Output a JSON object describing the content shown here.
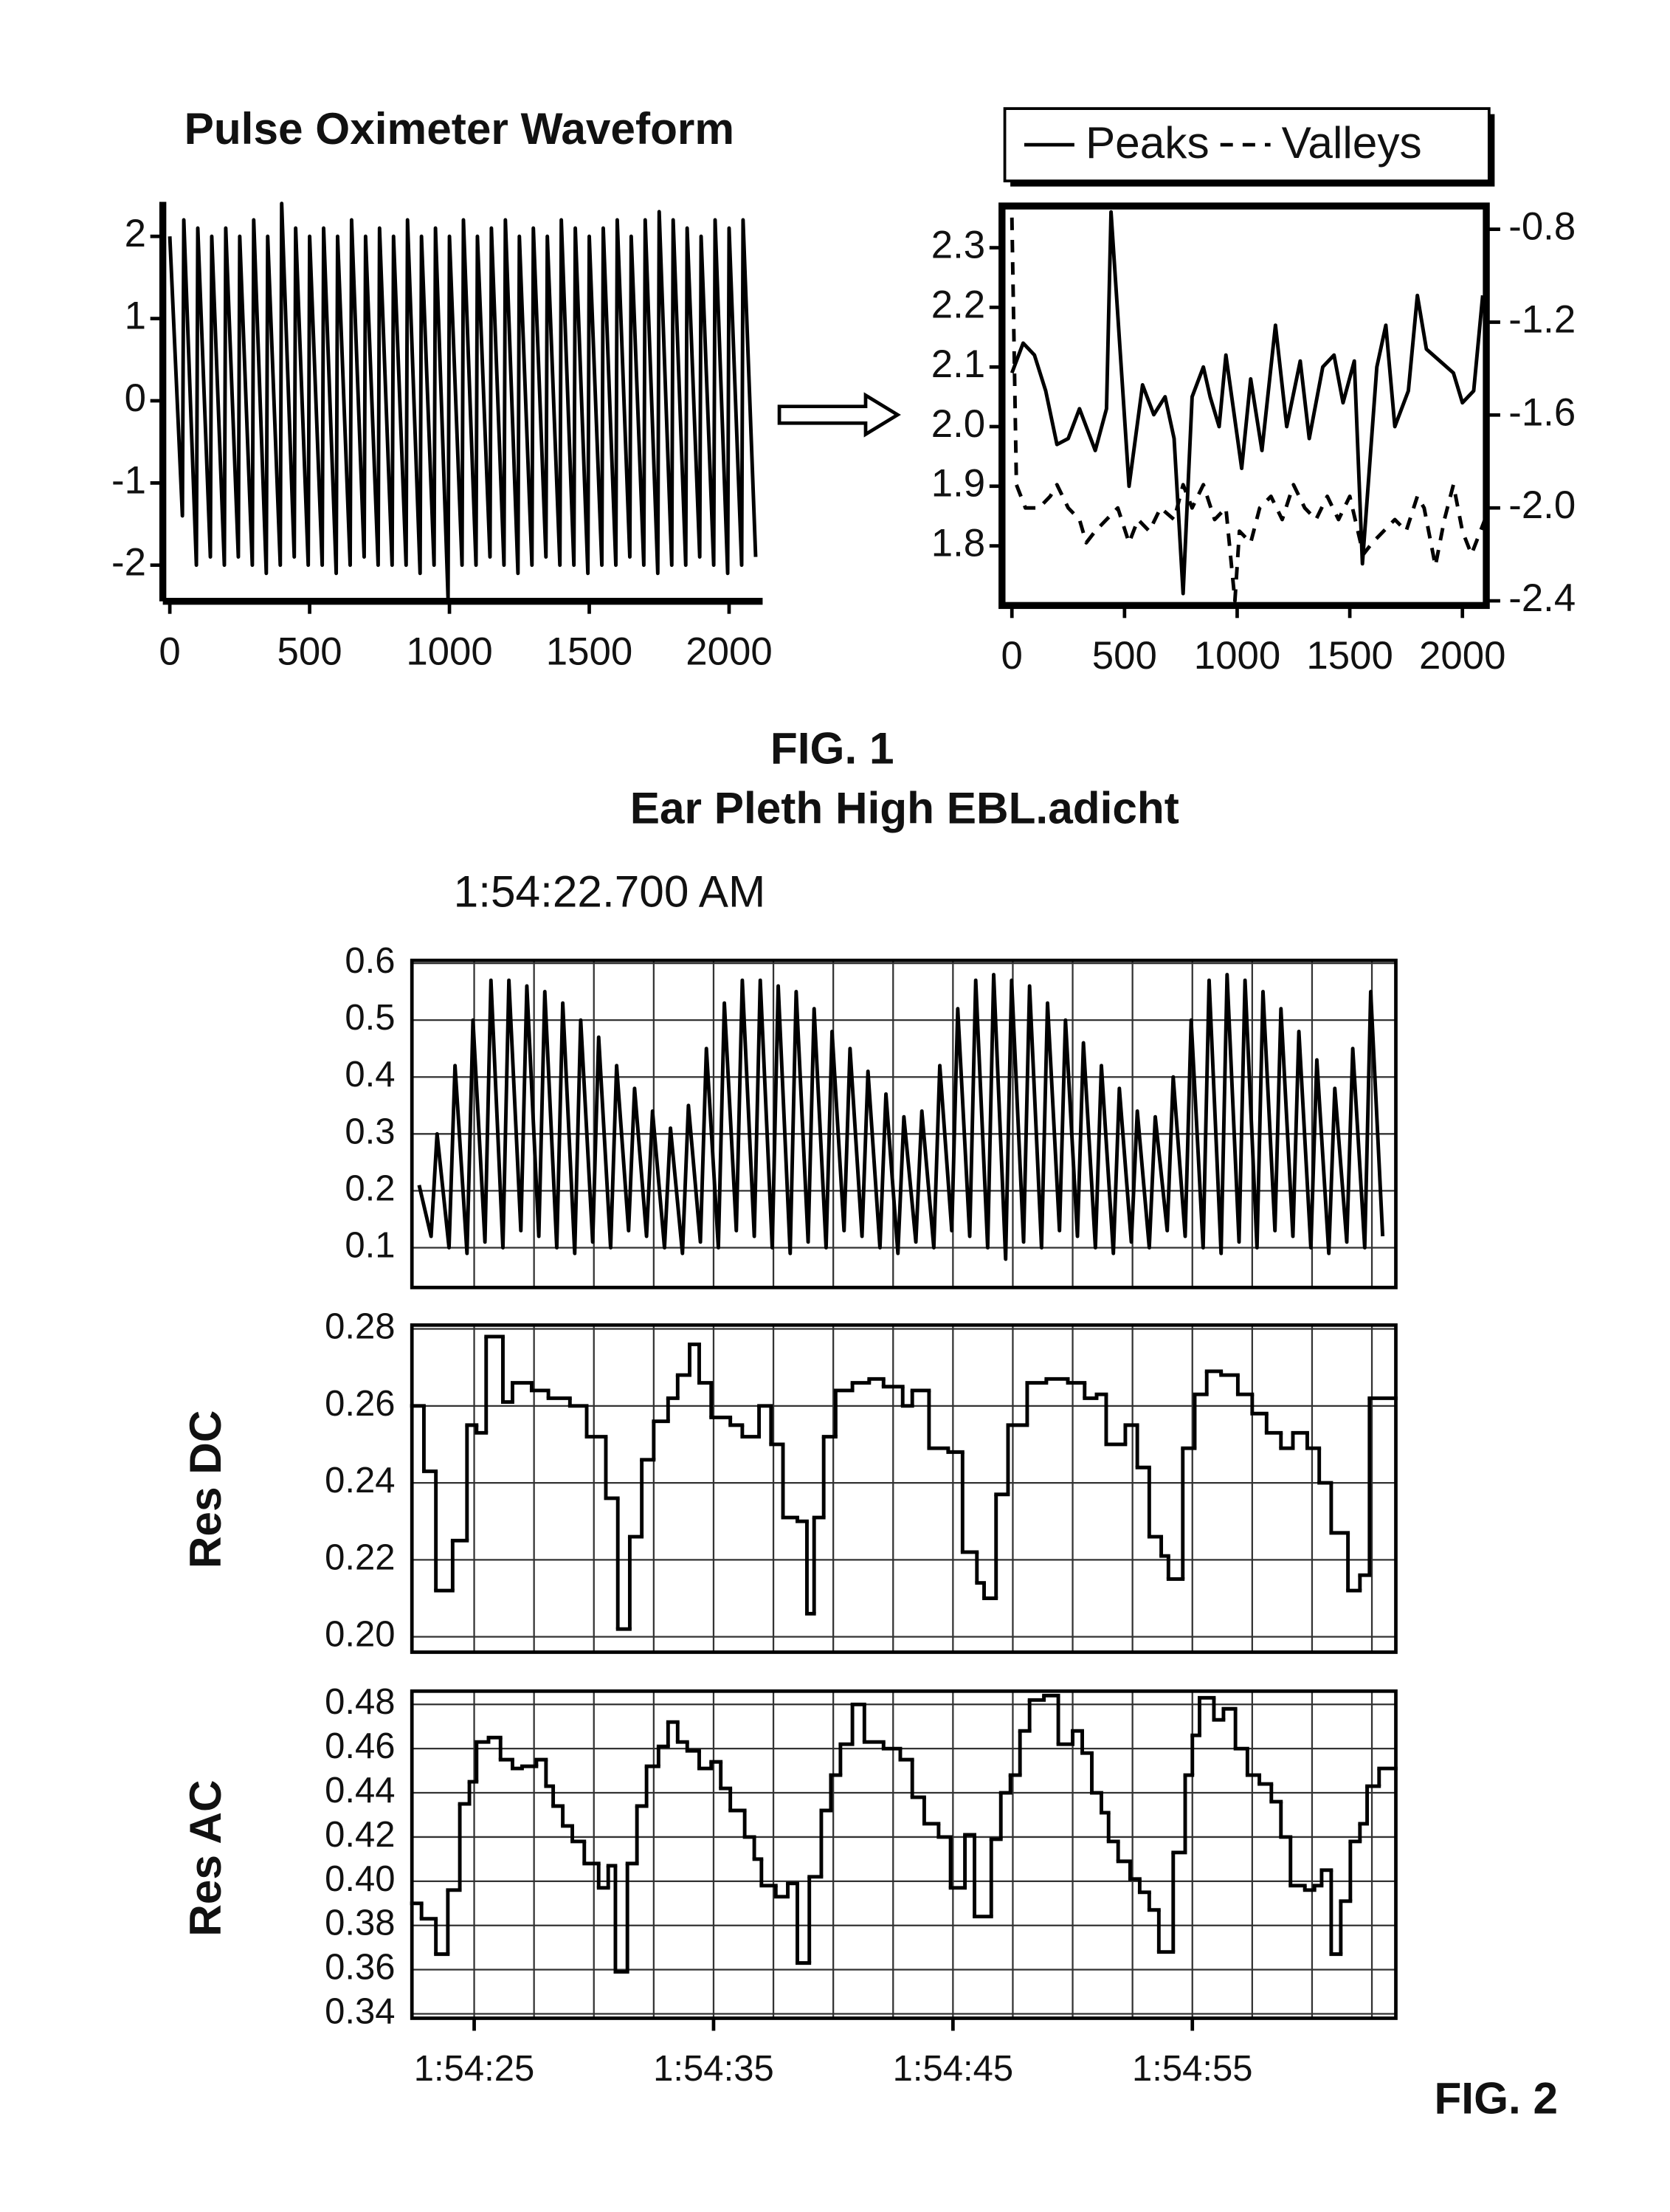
{
  "captions": [
    "FIG. 1",
    "FIG. 2"
  ],
  "chart_data": [
    {
      "type": "line",
      "title": "Pulse Oximeter Waveform",
      "x": [
        0,
        45,
        50,
        95,
        100,
        145,
        150,
        195,
        200,
        245,
        250,
        295,
        300,
        345,
        350,
        395,
        400,
        445,
        450,
        495,
        500,
        545,
        550,
        595,
        600,
        645,
        650,
        695,
        700,
        745,
        750,
        795,
        800,
        845,
        850,
        895,
        900,
        945,
        950,
        995,
        1000,
        1045,
        1050,
        1095,
        1100,
        1145,
        1150,
        1195,
        1200,
        1245,
        1250,
        1295,
        1300,
        1345,
        1350,
        1395,
        1400,
        1445,
        1450,
        1495,
        1500,
        1545,
        1550,
        1595,
        1600,
        1645,
        1650,
        1695,
        1700,
        1745,
        1750,
        1795,
        1800,
        1845,
        1850,
        1895,
        1900,
        1945,
        1950,
        1995,
        2000,
        2045,
        2050,
        2095
      ],
      "series": [
        {
          "color": "#000000",
          "values": [
            2.0,
            -1.4,
            2.2,
            -2.0,
            2.1,
            -1.9,
            2.0,
            -2.0,
            2.1,
            -1.9,
            2.0,
            -2.0,
            2.2,
            -2.1,
            2.0,
            -2.0,
            2.4,
            -1.9,
            2.1,
            -2.0,
            2.0,
            -2.0,
            2.1,
            -2.1,
            2.0,
            -2.0,
            2.2,
            -1.9,
            2.0,
            -2.0,
            2.1,
            -2.0,
            2.0,
            -2.0,
            2.2,
            -2.1,
            2.0,
            -2.0,
            2.1,
            -2.4,
            2.0,
            -2.0,
            2.2,
            -2.0,
            2.0,
            -1.9,
            2.1,
            -2.0,
            2.2,
            -2.1,
            2.0,
            -2.0,
            2.1,
            -1.9,
            2.0,
            -2.0,
            2.2,
            -2.0,
            2.1,
            -2.1,
            2.0,
            -2.0,
            2.1,
            -2.0,
            2.2,
            -1.9,
            2.0,
            -2.0,
            2.2,
            -2.1,
            2.3,
            -2.0,
            2.2,
            -2.0,
            2.1,
            -1.9,
            2.0,
            -2.0,
            2.2,
            -2.1,
            2.1,
            -2.0,
            2.2,
            -1.9
          ]
        }
      ],
      "xlim": [
        -25,
        2120
      ],
      "ylim": [
        -2.44,
        2.42
      ],
      "xticks": [
        0,
        500,
        1000,
        1500,
        2000
      ],
      "yticks": [
        -2,
        -1,
        0,
        1,
        2
      ]
    },
    {
      "type": "line",
      "legend": "top",
      "series": [
        {
          "name": "Peaks",
          "color": "#000000",
          "dash": false,
          "x": [
            0,
            50,
            100,
            150,
            200,
            250,
            300,
            370,
            420,
            440,
            520,
            580,
            630,
            680,
            720,
            760,
            800,
            850,
            880,
            920,
            950,
            1020,
            1060,
            1110,
            1170,
            1220,
            1280,
            1320,
            1380,
            1430,
            1470,
            1520,
            1556,
            1620,
            1660,
            1700,
            1760,
            1800,
            1840,
            1900,
            1960,
            2000,
            2050,
            2090
          ],
          "values": [
            2.09,
            2.14,
            2.12,
            2.06,
            1.97,
            1.98,
            2.03,
            1.96,
            2.03,
            2.36,
            1.9,
            2.07,
            2.02,
            2.05,
            1.98,
            1.72,
            2.05,
            2.1,
            2.05,
            2.0,
            2.12,
            1.93,
            2.08,
            1.96,
            2.17,
            2.0,
            2.11,
            1.98,
            2.1,
            2.12,
            2.04,
            2.11,
            1.77,
            2.1,
            2.17,
            2.0,
            2.06,
            2.22,
            2.13,
            2.11,
            2.09,
            2.04,
            2.06,
            2.22
          ]
        },
        {
          "name": "Valleys",
          "color": "#000000",
          "dash": true,
          "axis": "y2",
          "x": [
            0,
            20,
            60,
            120,
            170,
            200,
            250,
            300,
            330,
            370,
            420,
            470,
            520,
            560,
            610,
            660,
            720,
            760,
            800,
            850,
            900,
            950,
            990,
            1010,
            1060,
            1100,
            1150,
            1200,
            1250,
            1300,
            1350,
            1400,
            1450,
            1500,
            1560,
            1600,
            1650,
            1700,
            1750,
            1800,
            1830,
            1880,
            1920,
            1960,
            2000,
            2040,
            2100
          ],
          "values": [
            -0.75,
            -1.9,
            -2.0,
            -2.0,
            -1.95,
            -1.9,
            -2.0,
            -2.05,
            -2.15,
            -2.1,
            -2.05,
            -2.0,
            -2.15,
            -2.05,
            -2.1,
            -2.0,
            -2.05,
            -1.9,
            -2.0,
            -1.9,
            -2.05,
            -2.0,
            -2.4,
            -2.1,
            -2.15,
            -2.0,
            -1.95,
            -2.05,
            -1.9,
            -2.0,
            -2.05,
            -1.95,
            -2.05,
            -1.95,
            -2.2,
            -2.15,
            -2.1,
            -2.05,
            -2.1,
            -1.95,
            -2.0,
            -2.25,
            -2.05,
            -1.9,
            -2.1,
            -2.2,
            -2.05
          ]
        }
      ],
      "xlim": [
        -44,
        2106
      ],
      "ylim": [
        1.7,
        2.37
      ],
      "y2lim": [
        -2.42,
        -0.7
      ],
      "xticks": [
        0,
        500,
        1000,
        1500,
        2000
      ],
      "yticks": [
        1.8,
        1.9,
        {
          "value": 2,
          "label": "2.0"
        },
        2.1,
        2.2,
        2.3
      ],
      "y2ticks": [
        -2.4,
        {
          "value": -2,
          "label": "-2.0"
        },
        -1.6,
        -1.2,
        -0.8
      ]
    },
    {
      "type": "line",
      "title": "Ear Pleth High EBL.adicht",
      "subtitle": "1:54:22.700 AM",
      "grid": true,
      "x": [
        22.7,
        23.2,
        23.45,
        23.95,
        24.2,
        24.7,
        24.95,
        25.45,
        25.7,
        26.2,
        26.45,
        26.95,
        27.2,
        27.7,
        27.95,
        28.45,
        28.7,
        29.2,
        29.45,
        29.95,
        30.2,
        30.7,
        30.95,
        31.45,
        31.7,
        32.2,
        32.45,
        32.95,
        33.2,
        33.7,
        33.95,
        34.45,
        34.7,
        35.2,
        35.45,
        35.95,
        36.2,
        36.7,
        36.95,
        37.45,
        37.7,
        38.2,
        38.45,
        38.95,
        39.2,
        39.7,
        39.95,
        40.45,
        40.7,
        41.2,
        41.45,
        41.95,
        42.2,
        42.7,
        42.95,
        43.45,
        43.7,
        44.2,
        44.45,
        44.95,
        45.2,
        45.7,
        45.95,
        46.45,
        46.7,
        47.2,
        47.45,
        47.95,
        48.2,
        48.7,
        48.95,
        49.45,
        49.7,
        50.2,
        50.45,
        50.95,
        51.2,
        51.7,
        51.95,
        52.45,
        52.7,
        53.2,
        53.45,
        53.95,
        54.2,
        54.7,
        54.95,
        55.45,
        55.7,
        56.2,
        56.45,
        56.95,
        57.2,
        57.7,
        57.95,
        58.45,
        58.7,
        59.2,
        59.45,
        59.95,
        60.2,
        60.7,
        60.95,
        61.45,
        61.7,
        62.2,
        62.45,
        62.95
      ],
      "series": [
        {
          "color": "#000000",
          "values": [
            0.21,
            0.12,
            0.3,
            0.1,
            0.42,
            0.09,
            0.5,
            0.11,
            0.57,
            0.1,
            0.57,
            0.13,
            0.56,
            0.12,
            0.55,
            0.1,
            0.53,
            0.09,
            0.5,
            0.11,
            0.47,
            0.1,
            0.42,
            0.13,
            0.38,
            0.12,
            0.34,
            0.1,
            0.31,
            0.09,
            0.35,
            0.11,
            0.45,
            0.1,
            0.53,
            0.13,
            0.57,
            0.12,
            0.57,
            0.1,
            0.56,
            0.09,
            0.55,
            0.11,
            0.52,
            0.1,
            0.48,
            0.13,
            0.45,
            0.12,
            0.41,
            0.1,
            0.37,
            0.09,
            0.33,
            0.11,
            0.34,
            0.1,
            0.42,
            0.13,
            0.52,
            0.12,
            0.57,
            0.1,
            0.58,
            0.08,
            0.57,
            0.11,
            0.56,
            0.1,
            0.53,
            0.13,
            0.5,
            0.12,
            0.46,
            0.1,
            0.42,
            0.09,
            0.38,
            0.11,
            0.34,
            0.1,
            0.33,
            0.13,
            0.4,
            0.12,
            0.5,
            0.1,
            0.57,
            0.09,
            0.58,
            0.11,
            0.57,
            0.1,
            0.55,
            0.13,
            0.52,
            0.12,
            0.48,
            0.1,
            0.43,
            0.09,
            0.38,
            0.11,
            0.45,
            0.1,
            0.55,
            0.12
          ]
        }
      ],
      "xlim": [
        22.4,
        63.5
      ],
      "ylim": [
        0.03,
        0.605
      ],
      "yticks": [
        0.1,
        0.2,
        0.3,
        0.4,
        0.5,
        0.6
      ],
      "xgrid": [
        25,
        27.5,
        30,
        32.5,
        35,
        37.5,
        40,
        42.5,
        45,
        47.5,
        50,
        52.5,
        55,
        57.5,
        60,
        62.5
      ]
    },
    {
      "type": "step",
      "ylabel": "Res DC",
      "grid": true,
      "x": [
        22.4,
        22.9,
        23.4,
        24.1,
        24.7,
        25.1,
        25.5,
        26.2,
        26.6,
        27.4,
        28.1,
        29.0,
        29.7,
        30.5,
        31.0,
        31.5,
        32.0,
        32.5,
        33.1,
        33.5,
        34.0,
        34.4,
        34.9,
        35.7,
        36.2,
        36.9,
        37.4,
        37.9,
        38.5,
        38.9,
        39.2,
        39.6,
        40.1,
        40.8,
        41.5,
        42.1,
        42.9,
        43.3,
        44.0,
        44.8,
        45.4,
        46.0,
        46.3,
        46.8,
        47.3,
        48.1,
        48.9,
        49.8,
        50.5,
        51.0,
        51.4,
        52.2,
        52.7,
        53.2,
        53.7,
        54.0,
        54.6,
        55.1,
        55.6,
        56.2,
        56.9,
        57.5,
        58.1,
        58.7,
        59.2,
        59.8,
        60.3,
        60.8,
        61.5,
        62.0,
        62.4
      ],
      "series": [
        {
          "color": "#000000",
          "values": [
            0.26,
            0.243,
            0.212,
            0.225,
            0.255,
            0.253,
            0.278,
            0.261,
            0.266,
            0.264,
            0.262,
            0.26,
            0.252,
            0.236,
            0.202,
            0.226,
            0.246,
            0.256,
            0.262,
            0.268,
            0.276,
            0.266,
            0.257,
            0.255,
            0.252,
            0.26,
            0.25,
            0.231,
            0.23,
            0.206,
            0.231,
            0.252,
            0.264,
            0.266,
            0.267,
            0.265,
            0.26,
            0.264,
            0.249,
            0.248,
            0.222,
            0.214,
            0.21,
            0.237,
            0.255,
            0.266,
            0.267,
            0.266,
            0.262,
            0.263,
            0.25,
            0.255,
            0.244,
            0.226,
            0.221,
            0.215,
            0.249,
            0.263,
            0.269,
            0.268,
            0.263,
            0.258,
            0.253,
            0.249,
            0.253,
            0.249,
            0.24,
            0.227,
            0.212,
            0.216,
            0.262
          ]
        }
      ],
      "xlim": [
        22.4,
        63.5
      ],
      "ylim": [
        0.196,
        0.281
      ],
      "yticks": [
        {
          "value": 0.2,
          "label": "0.20"
        },
        0.22,
        0.24,
        0.26,
        0.28
      ],
      "xgrid": [
        25,
        27.5,
        30,
        32.5,
        35,
        37.5,
        40,
        42.5,
        45,
        47.5,
        50,
        52.5,
        55,
        57.5,
        60,
        62.5
      ]
    },
    {
      "type": "step",
      "ylabel": "Res AC",
      "grid": true,
      "x": [
        22.4,
        22.8,
        23.4,
        23.9,
        24.4,
        24.8,
        25.1,
        25.6,
        26.1,
        26.6,
        27.0,
        27.6,
        28.0,
        28.3,
        28.7,
        29.1,
        29.6,
        30.2,
        30.6,
        30.9,
        31.4,
        31.8,
        32.2,
        32.7,
        33.1,
        33.5,
        33.9,
        34.4,
        34.9,
        35.3,
        35.7,
        36.3,
        36.7,
        37.0,
        37.6,
        38.1,
        38.5,
        39.0,
        39.5,
        39.9,
        40.3,
        40.8,
        41.3,
        42.1,
        42.8,
        43.3,
        43.8,
        44.4,
        44.9,
        45.5,
        45.9,
        46.6,
        47.0,
        47.4,
        47.8,
        48.2,
        48.8,
        49.4,
        50.0,
        50.4,
        50.8,
        51.2,
        51.5,
        51.9,
        52.4,
        52.8,
        53.2,
        53.6,
        54.2,
        54.7,
        55.0,
        55.3,
        55.9,
        56.3,
        56.8,
        57.3,
        57.8,
        58.3,
        58.7,
        59.1,
        59.7,
        60.1,
        60.4,
        60.8,
        61.2,
        61.6,
        62.0,
        62.3,
        62.8
      ],
      "series": [
        {
          "color": "#000000",
          "values": [
            0.39,
            0.383,
            0.367,
            0.396,
            0.435,
            0.445,
            0.463,
            0.465,
            0.455,
            0.451,
            0.452,
            0.455,
            0.443,
            0.434,
            0.425,
            0.418,
            0.408,
            0.397,
            0.407,
            0.359,
            0.408,
            0.434,
            0.452,
            0.461,
            0.472,
            0.463,
            0.459,
            0.451,
            0.454,
            0.442,
            0.432,
            0.42,
            0.41,
            0.398,
            0.393,
            0.399,
            0.363,
            0.402,
            0.432,
            0.448,
            0.462,
            0.48,
            0.463,
            0.46,
            0.455,
            0.438,
            0.426,
            0.42,
            0.397,
            0.421,
            0.384,
            0.419,
            0.44,
            0.448,
            0.468,
            0.482,
            0.484,
            0.462,
            0.468,
            0.458,
            0.44,
            0.431,
            0.418,
            0.409,
            0.401,
            0.395,
            0.387,
            0.368,
            0.413,
            0.448,
            0.466,
            0.483,
            0.473,
            0.478,
            0.46,
            0.448,
            0.444,
            0.436,
            0.42,
            0.398,
            0.396,
            0.398,
            0.405,
            0.367,
            0.391,
            0.418,
            0.426,
            0.443,
            0.451
          ]
        }
      ],
      "xlim": [
        22.4,
        63.5
      ],
      "ylim": [
        0.338,
        0.486
      ],
      "yticks": [
        0.34,
        0.36,
        0.38,
        {
          "value": 0.4,
          "label": "0.40"
        },
        0.42,
        0.44,
        0.46,
        0.48
      ],
      "xticks": [
        {
          "value": 25,
          "label": "1:54:25"
        },
        {
          "value": 35,
          "label": "1:54:35"
        },
        {
          "value": 45,
          "label": "1:54:45"
        },
        {
          "value": 55,
          "label": "1:54:55"
        }
      ],
      "xgrid": [
        25,
        27.5,
        30,
        32.5,
        35,
        37.5,
        40,
        42.5,
        45,
        47.5,
        50,
        52.5,
        55,
        57.5,
        60,
        62.5
      ]
    }
  ]
}
